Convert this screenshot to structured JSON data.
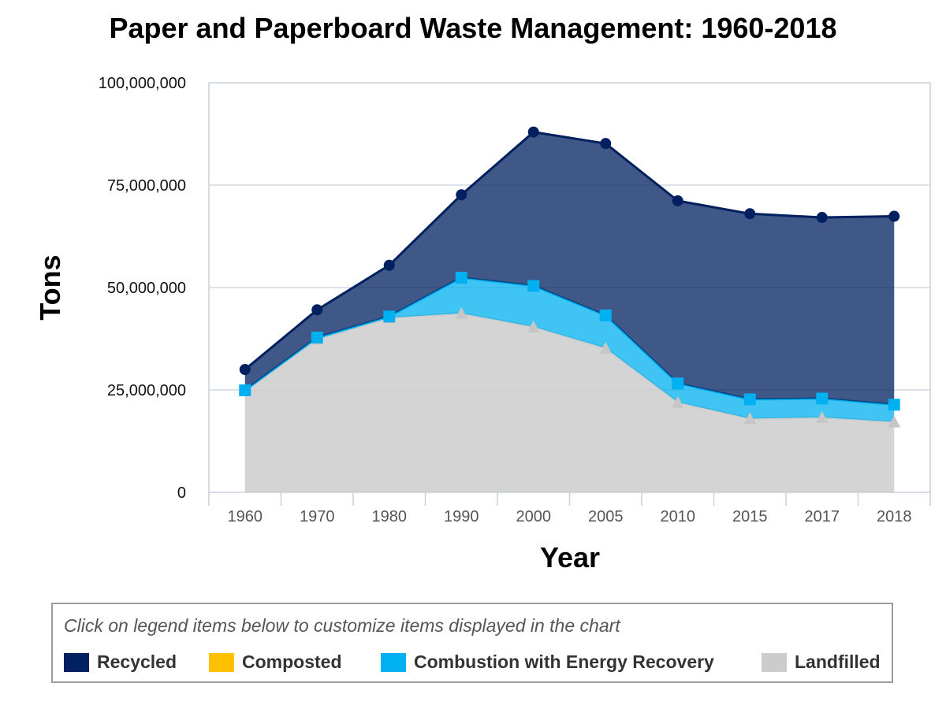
{
  "chart_data": {
    "type": "area",
    "stacked": true,
    "title": "Paper and Paperboard Waste Management: 1960-2018",
    "xlabel": "Year",
    "ylabel": "Tons",
    "ylim": [
      0,
      100000000
    ],
    "y_ticks": [
      {
        "value": 0,
        "label": "0"
      },
      {
        "value": 25000000,
        "label": "25,000,000"
      },
      {
        "value": 50000000,
        "label": "50,000,000"
      },
      {
        "value": 75000000,
        "label": "75,000,000"
      },
      {
        "value": 100000000,
        "label": "100,000,000"
      }
    ],
    "grid": true,
    "categories": [
      "1960",
      "1970",
      "1980",
      "1990",
      "2000",
      "2005",
      "2010",
      "2015",
      "2017",
      "2018"
    ],
    "series": [
      {
        "name": "Landfilled",
        "color": "#cccccc",
        "marker": "triangle",
        "values": [
          24910000,
          37390000,
          42630000,
          43710000,
          40400000,
          35200000,
          22000000,
          18000000,
          18300000,
          17200000
        ]
      },
      {
        "name": "Composted",
        "color": "#ffc000",
        "marker": "none",
        "values": [
          0,
          0,
          0,
          0,
          0,
          0,
          0,
          0,
          0,
          0
        ]
      },
      {
        "name": "Combustion with Energy Recovery",
        "color": "#00b0f0",
        "marker": "square",
        "values": [
          0,
          400000,
          300000,
          8700000,
          10000000,
          8000000,
          4600000,
          4700000,
          4600000,
          4200000
        ]
      },
      {
        "name": "Recycled",
        "color": "#002060",
        "marker": "circle",
        "values": [
          5080000,
          6770000,
          12510000,
          20230000,
          37560000,
          41960000,
          44570000,
          45320000,
          44210000,
          46000000
        ]
      }
    ]
  },
  "legend": {
    "hint": "Click on legend items below to customize items displayed in the chart",
    "items": [
      {
        "label": "Recycled",
        "color": "#002060"
      },
      {
        "label": "Composted",
        "color": "#ffc000"
      },
      {
        "label": "Combustion with Energy Recovery",
        "color": "#00b0f0"
      },
      {
        "label": "Landfilled",
        "color": "#cccccc"
      }
    ]
  }
}
